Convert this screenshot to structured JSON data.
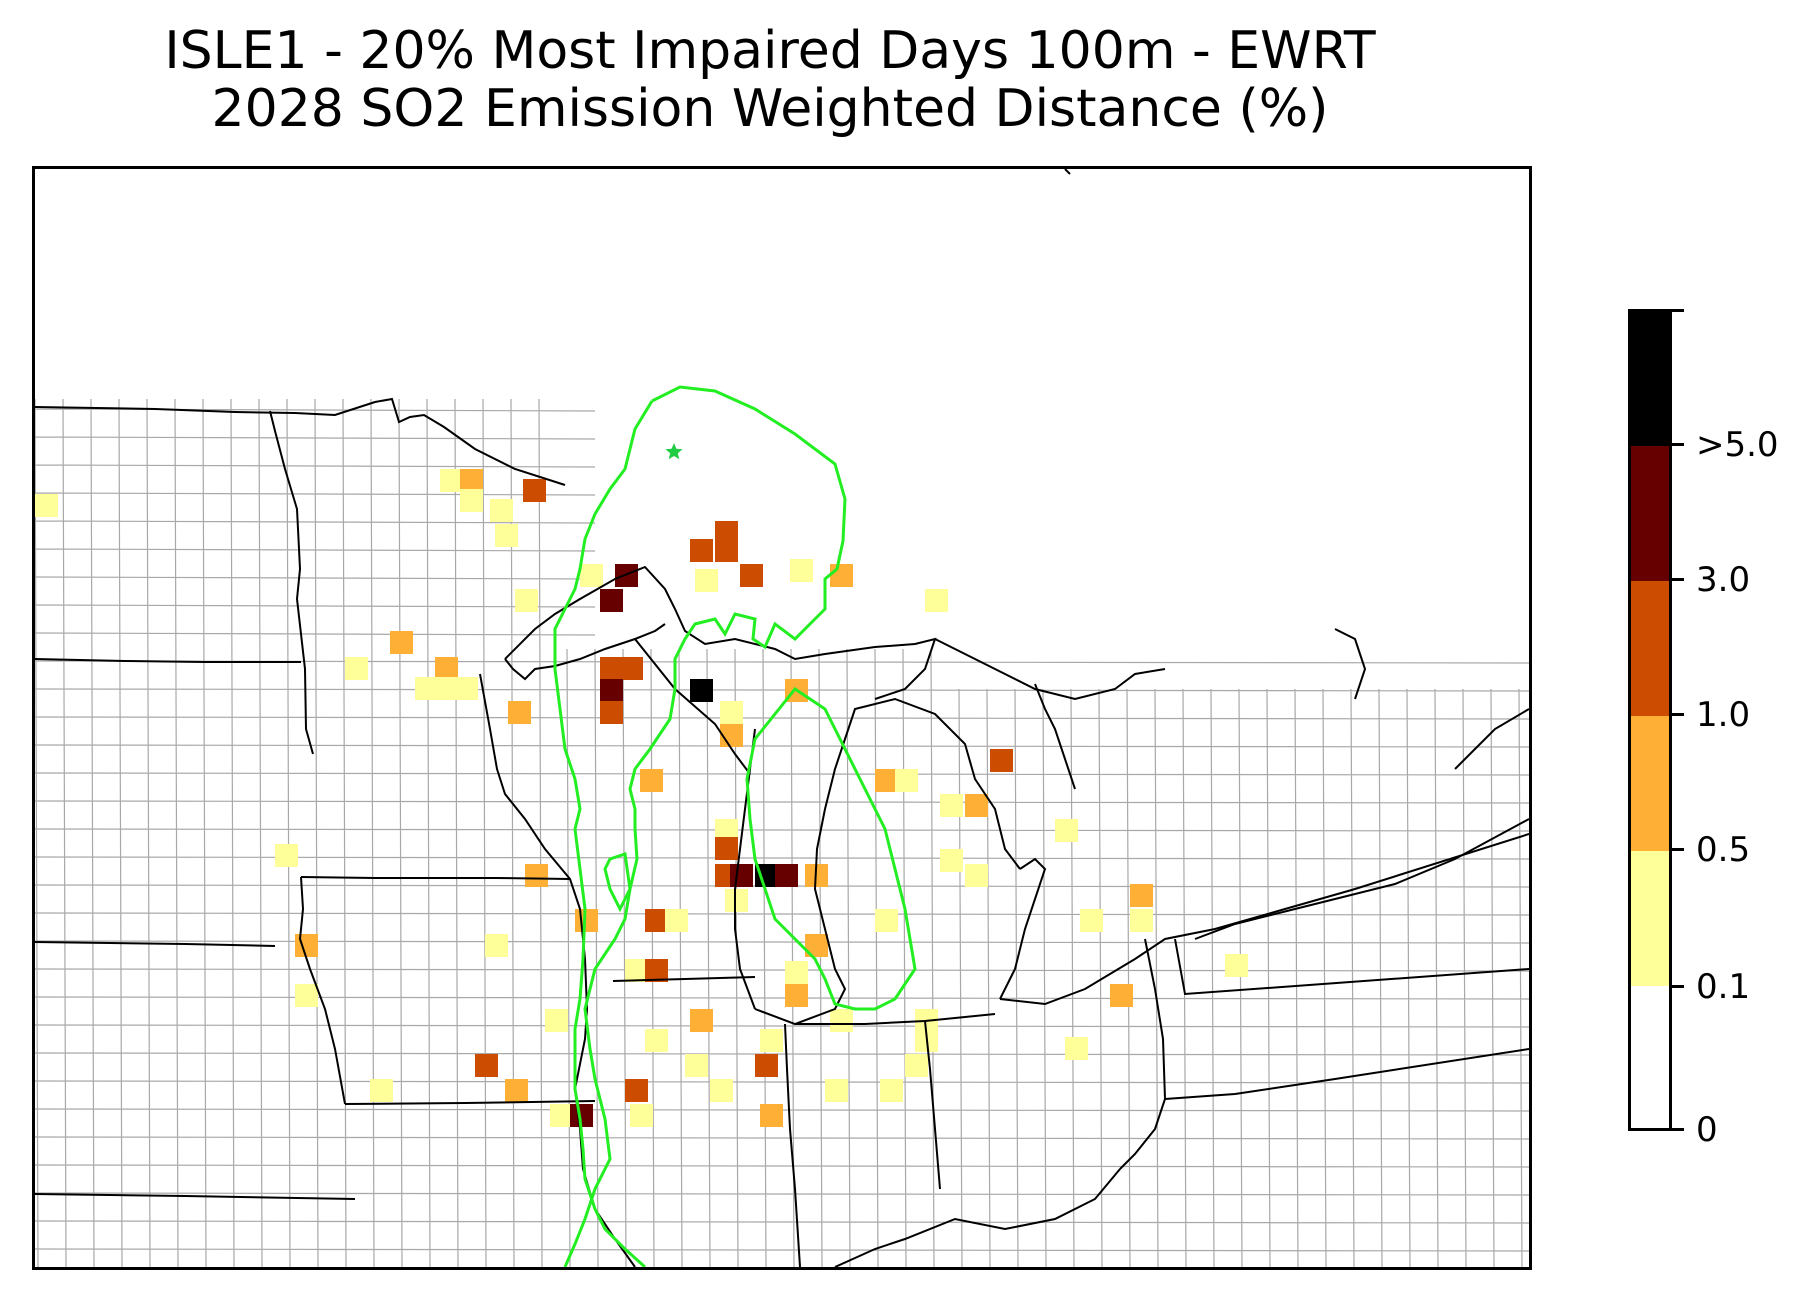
{
  "title": {
    "line1": "ISLE1 - 20% Most Impaired Days 100m - EWRT",
    "line2": "2028 SO2 Emission Weighted Distance (%)"
  },
  "map": {
    "site_marker": "star-icon",
    "colors": {
      "county_line": "#9e9e9e",
      "state_line": "#000000",
      "contour": "#22ee22",
      "marker": "#22cc44"
    }
  },
  "legend": {
    "bins": [
      {
        "label": "0",
        "color": "#ffffff"
      },
      {
        "label": "0.1",
        "color": "#ffff99"
      },
      {
        "label": "0.5",
        "color": "#fdb035"
      },
      {
        "label": "1.0",
        "color": "#cc4c02"
      },
      {
        "label": "3.0",
        "color": "#660000"
      },
      {
        "label": ">5.0",
        "color": "#000000"
      }
    ],
    "tick_labels": [
      "0",
      "0.1",
      "0.5",
      "1.0",
      "3.0",
      ">5.0"
    ]
  }
}
